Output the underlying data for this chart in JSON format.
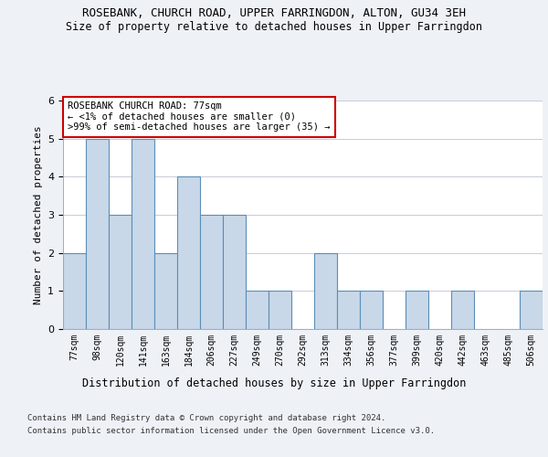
{
  "title1": "ROSEBANK, CHURCH ROAD, UPPER FARRINGDON, ALTON, GU34 3EH",
  "title2": "Size of property relative to detached houses in Upper Farringdon",
  "xlabel": "Distribution of detached houses by size in Upper Farringdon",
  "ylabel": "Number of detached properties",
  "categories": [
    "77sqm",
    "98sqm",
    "120sqm",
    "141sqm",
    "163sqm",
    "184sqm",
    "206sqm",
    "227sqm",
    "249sqm",
    "270sqm",
    "292sqm",
    "313sqm",
    "334sqm",
    "356sqm",
    "377sqm",
    "399sqm",
    "420sqm",
    "442sqm",
    "463sqm",
    "485sqm",
    "506sqm"
  ],
  "values": [
    2,
    5,
    3,
    5,
    2,
    4,
    3,
    3,
    1,
    1,
    0,
    2,
    1,
    1,
    0,
    1,
    0,
    1,
    0,
    0,
    1
  ],
  "bar_color": "#c8d8e8",
  "bar_edge_color": "#5b8db8",
  "annotation_box_color": "#ffffff",
  "annotation_border_color": "#cc0000",
  "annotation_text_line1": "ROSEBANK CHURCH ROAD: 77sqm",
  "annotation_text_line2": "← <1% of detached houses are smaller (0)",
  "annotation_text_line3": ">99% of semi-detached houses are larger (35) →",
  "footnote1": "Contains HM Land Registry data © Crown copyright and database right 2024.",
  "footnote2": "Contains public sector information licensed under the Open Government Licence v3.0.",
  "ylim": [
    0,
    6
  ],
  "bg_color": "#eef2f7",
  "plot_bg_color": "#ffffff",
  "grid_color": "#c8ccd8"
}
